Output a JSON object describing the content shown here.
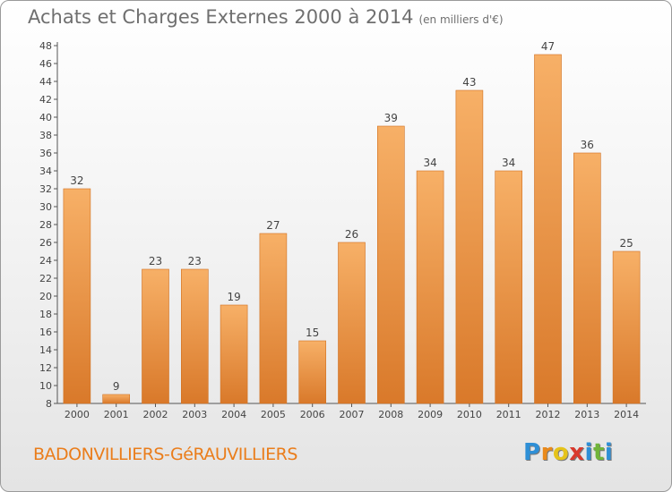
{
  "header": {
    "title": "Achats et Charges Externes 2000 à 2014",
    "subtitle": "(en milliers d'€)"
  },
  "footer": {
    "location": "BADONVILLIERS-GéRAUVILLIERS"
  },
  "logo": {
    "text": "Proxiti",
    "letters": [
      {
        "ch": "P",
        "color": "#2e8fd6"
      },
      {
        "ch": "r",
        "color": "#ea8a1b"
      },
      {
        "ch": "o",
        "color": "#e5c31a"
      },
      {
        "ch": "x",
        "color": "#d9392d"
      },
      {
        "ch": "i",
        "color": "#2e8fd6"
      },
      {
        "ch": "t",
        "color": "#71b43a"
      },
      {
        "ch": "i",
        "color": "#2e8fd6"
      }
    ]
  },
  "chart_data": {
    "type": "bar",
    "title": "Achats et Charges Externes 2000 à 2014",
    "subtitle": "(en milliers d'€)",
    "categories": [
      "2000",
      "2001",
      "2002",
      "2003",
      "2004",
      "2005",
      "2006",
      "2007",
      "2008",
      "2009",
      "2010",
      "2011",
      "2012",
      "2013",
      "2014"
    ],
    "values": [
      32,
      9,
      23,
      23,
      19,
      27,
      15,
      26,
      39,
      34,
      43,
      34,
      47,
      36,
      25
    ],
    "ylim": [
      8,
      48
    ],
    "yticks": [
      8,
      10,
      12,
      14,
      16,
      18,
      20,
      22,
      24,
      26,
      28,
      30,
      32,
      34,
      36,
      38,
      40,
      42,
      44,
      46,
      48
    ],
    "grid": false,
    "bar_color": "#f0a04c",
    "bar_color_light": "#f7b067",
    "bar_color_dark": "#d9792a"
  }
}
